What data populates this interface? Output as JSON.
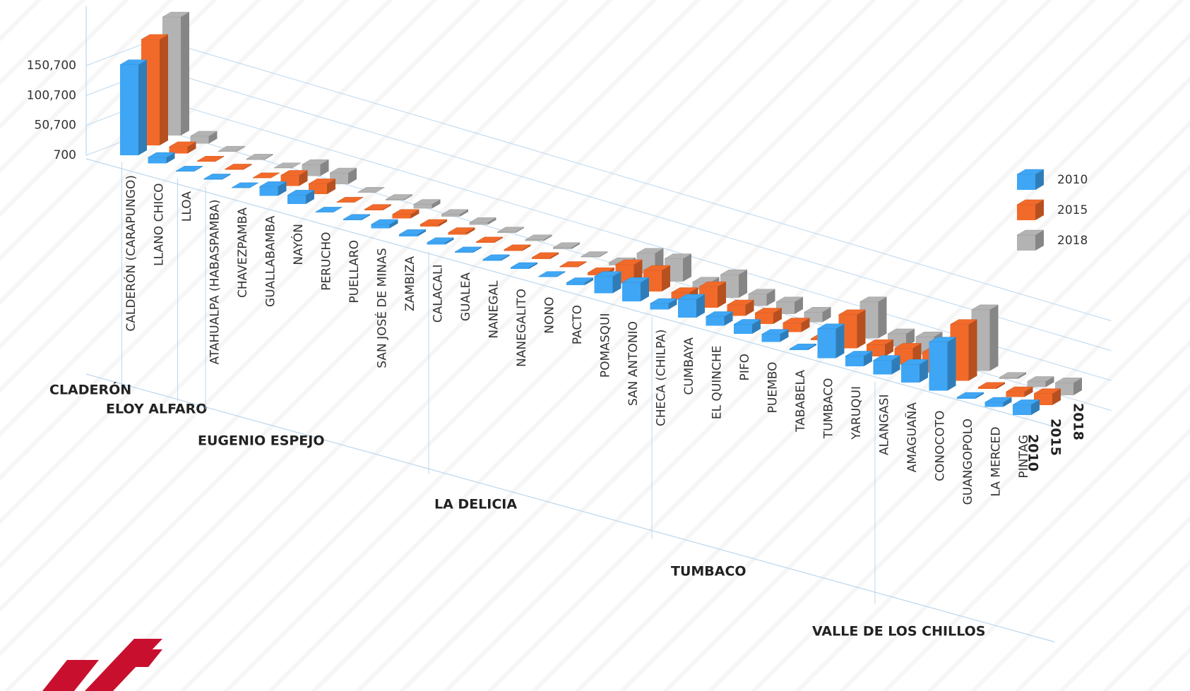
{
  "chart_data": {
    "type": "bar3d",
    "groups": [
      {
        "name": "CLADERÓN",
        "categories": [
          "CALDERÓN (CARAPUNGO)",
          "LLANO CHICO"
        ]
      },
      {
        "name": "ELOY ALFARO",
        "categories": [
          "LLOA"
        ]
      },
      {
        "name": "EUGENIO ESPEJO",
        "categories": [
          "ATAHUALPA (HABASPAMBA)",
          "CHAVEZPAMBA",
          "GUALLABAMBA",
          "NAYÓN",
          "PERUCHO",
          "PUELLARO",
          "SAN JOSÉ DE MINAS",
          "ZAMBIZA"
        ]
      },
      {
        "name": "LA DELICIA",
        "categories": [
          "CALACALI",
          "GUALEA",
          "NANEGAL",
          "NANEGALITO",
          "NONO",
          "PACTO",
          "POMASQUI",
          "SAN ANTONIO"
        ]
      },
      {
        "name": "TUMBACO",
        "categories": [
          "CHECA (CHILPA)",
          "CUMBAYA",
          "EL QUINCHE",
          "PIFO",
          "PUEMBO",
          "TABABELA",
          "TUMBACO",
          "YARUQUI"
        ]
      },
      {
        "name": "VALLE DE LOS CHILLOS",
        "categories": [
          "ALANGASI",
          "AMAGUAÑA",
          "CONOCOTO",
          "GUANGOPOLO",
          "LA MERCED",
          "PINTAG"
        ]
      }
    ],
    "series": [
      {
        "name": "2010",
        "color": "#3ea6f5",
        "values": [
          152242,
          10673,
          1494,
          1901,
          842,
          16213,
          15635,
          787,
          2218,
          7243,
          4017,
          3895,
          2025,
          2636,
          3026,
          1732,
          4798,
          28910,
          32357,
          10739,
          31463,
          16056,
          16645,
          13593,
          2823,
          49944,
          17854,
          24251,
          31106,
          82072,
          3059,
          8394,
          17930
        ]
      },
      {
        "name": "2015",
        "color": "#f26a2a",
        "values": [
          178000,
          12000,
          1600,
          1950,
          880,
          18500,
          18000,
          800,
          2300,
          7500,
          4300,
          4200,
          2100,
          2700,
          3200,
          1800,
          5000,
          32000,
          36000,
          12500,
          36000,
          19000,
          19000,
          16000,
          3200,
          57000,
          20500,
          28000,
          35000,
          95000,
          3300,
          9500,
          20000
        ]
      },
      {
        "name": "2018",
        "color": "#b3b3b3",
        "values": [
          199000,
          13200,
          1700,
          2000,
          900,
          20000,
          19500,
          820,
          2400,
          7700,
          4500,
          4400,
          2150,
          2750,
          3350,
          1850,
          5200,
          34500,
          39000,
          13500,
          39500,
          20500,
          21000,
          17500,
          3500,
          62000,
          22000,
          30500,
          38000,
          103000,
          3500,
          10200,
          21500
        ]
      }
    ],
    "ylim": [
      700,
      250700
    ],
    "yticks": [
      {
        "value": 700,
        "label": "700"
      },
      {
        "value": 50700,
        "label": "50,700"
      },
      {
        "value": 100700,
        "label": "100,700"
      },
      {
        "value": 150700,
        "label": "150,700"
      }
    ],
    "grid": true,
    "legend": "right"
  }
}
